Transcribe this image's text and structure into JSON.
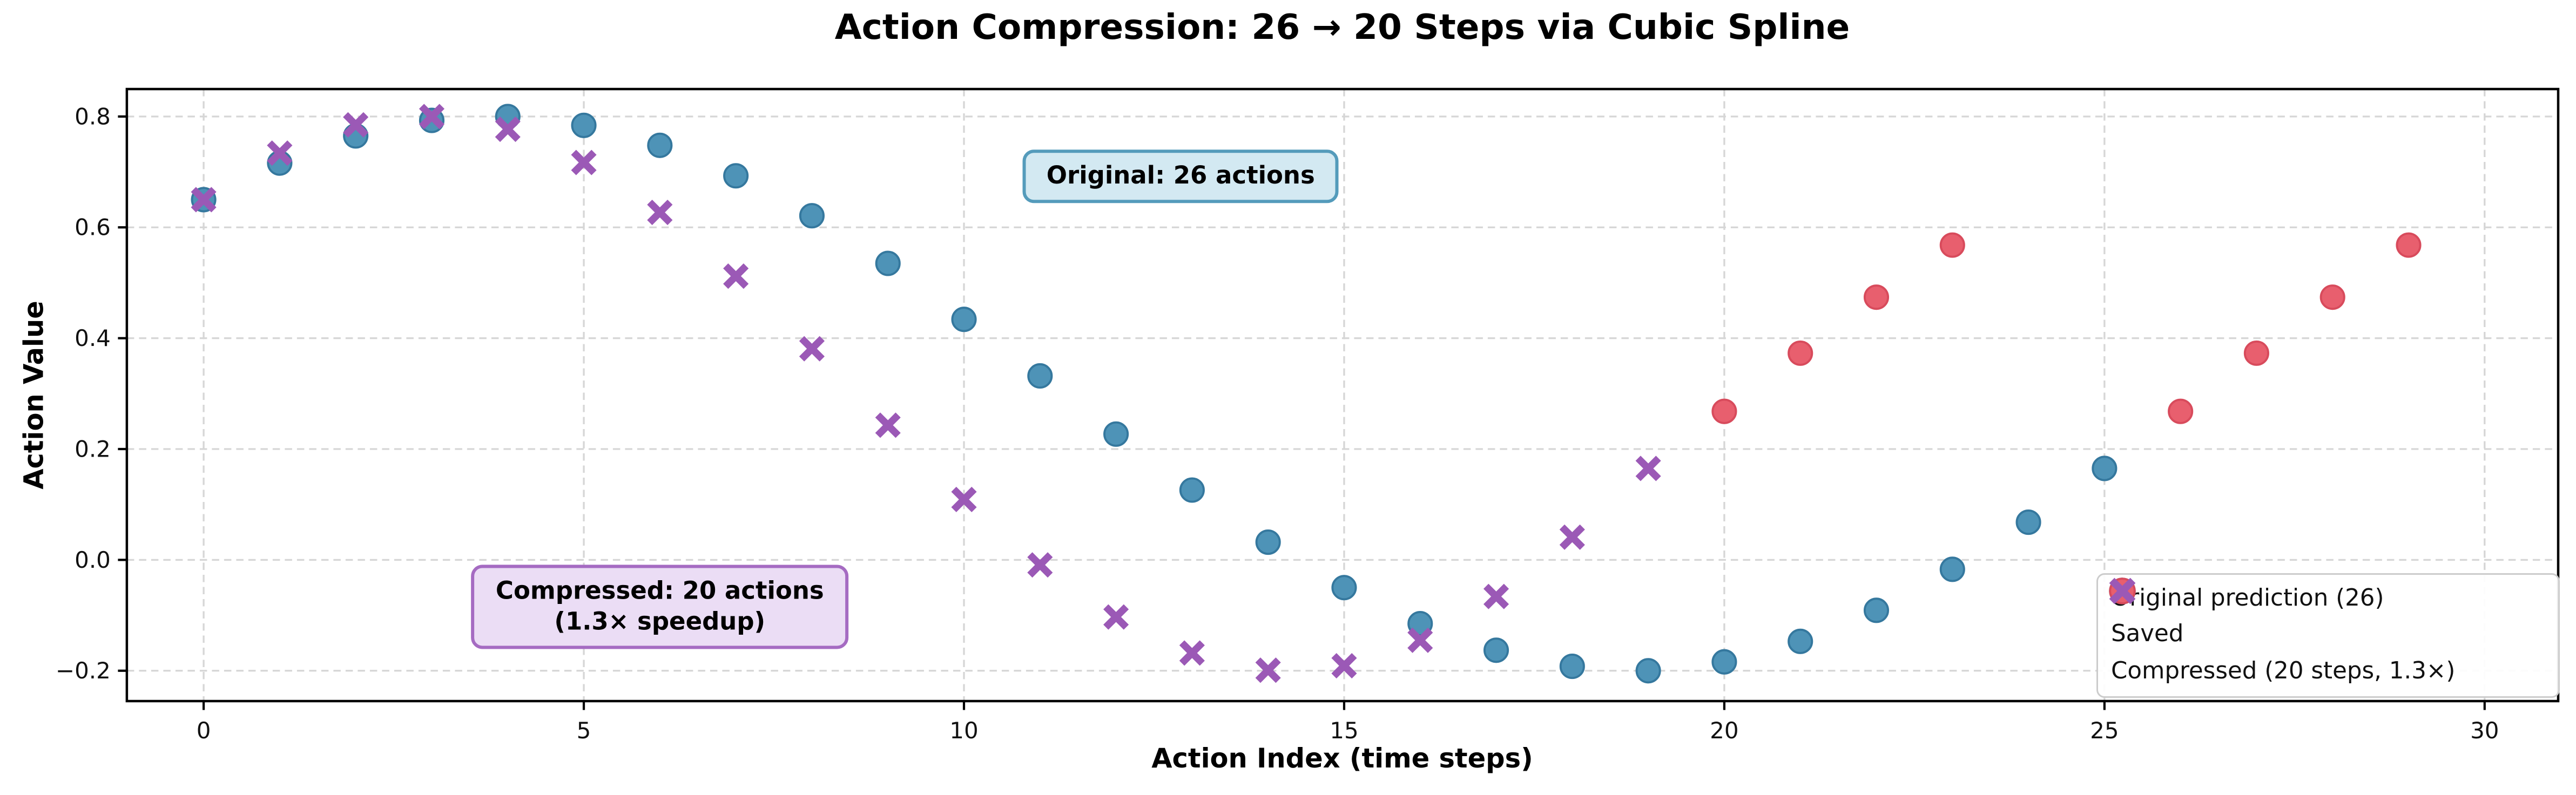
{
  "chart_data": {
    "type": "scatter",
    "title": "Action Compression: 26 → 20 Steps via Cubic Spline",
    "xlabel": "Action Index (time steps)",
    "ylabel": "Action Value",
    "xlim": [
      -1.0,
      31.0
    ],
    "ylim": [
      -0.255,
      0.85
    ],
    "grid": true,
    "grid_style": "dashed",
    "x_ticks": [
      0,
      5,
      10,
      15,
      20,
      25,
      30
    ],
    "x_tick_labels": [
      "0",
      "5",
      "10",
      "15",
      "20",
      "25",
      "30"
    ],
    "y_ticks": [
      -0.2,
      0.0,
      0.2,
      0.4,
      0.6,
      0.8
    ],
    "y_tick_labels": [
      "−0.2",
      "0.0",
      "0.2",
      "0.4",
      "0.6",
      "0.8"
    ],
    "legend_position": "lower right",
    "series": [
      {
        "name": "Original prediction (26)",
        "marker": "circle",
        "fill": "#4E93B7",
        "edge": "#35789E",
        "x": [
          0,
          1,
          2,
          3,
          4,
          5,
          6,
          7,
          8,
          9,
          10,
          11,
          12,
          13,
          14,
          15,
          16,
          17,
          18,
          19,
          20,
          21,
          22,
          23,
          24,
          25
        ],
        "y": [
          0.65,
          0.716,
          0.765,
          0.793,
          0.8,
          0.784,
          0.748,
          0.693,
          0.621,
          0.535,
          0.434,
          0.332,
          0.227,
          0.126,
          0.032,
          -0.05,
          -0.115,
          -0.163,
          -0.192,
          -0.2,
          -0.184,
          -0.147,
          -0.091,
          -0.017,
          0.068,
          0.165
        ]
      },
      {
        "name": "Saved",
        "marker": "circle",
        "fill": "#E85F6E",
        "edge": "#D84B5C",
        "x": [
          20,
          21,
          22,
          23,
          26,
          27,
          28,
          29
        ],
        "y": [
          0.268,
          0.373,
          0.474,
          0.568,
          0.268,
          0.373,
          0.474,
          0.568
        ]
      },
      {
        "name": "Compressed (20 steps, 1.3×)",
        "marker": "x",
        "fill": "#9B59B6",
        "edge": "#9B59B6",
        "x": [
          0,
          1,
          2,
          3,
          4,
          5,
          6,
          7,
          8,
          9,
          10,
          11,
          12,
          13,
          14,
          15,
          16,
          17,
          18,
          19
        ],
        "y": [
          0.65,
          0.734,
          0.785,
          0.8,
          0.777,
          0.717,
          0.627,
          0.512,
          0.381,
          0.243,
          0.109,
          -0.009,
          -0.103,
          -0.168,
          -0.199,
          -0.191,
          -0.145,
          -0.066,
          0.041,
          0.165
        ]
      }
    ],
    "legend": [
      {
        "label": "Original prediction (26)",
        "marker": "circle",
        "fill": "#4E93B7",
        "edge": "#35789E"
      },
      {
        "label": "Saved",
        "marker": "circle",
        "fill": "#E85F6E",
        "edge": "#D84B5C"
      },
      {
        "label": "Compressed (20 steps, 1.3×)",
        "marker": "x",
        "fill": "#9B59B6",
        "edge": "#9B59B6"
      }
    ],
    "annotations": {
      "original": {
        "text": "Original: 26 actions",
        "x": 12.85,
        "y": 0.693,
        "fill": "#D3E9F2",
        "edge": "#549BBB"
      },
      "compressed": {
        "line1": "Compressed: 20 actions",
        "line2": "(1.3× speedup)",
        "x": 6.0,
        "y": -0.084,
        "fill": "#EBDDF5",
        "edge": "#A56BC2"
      }
    }
  },
  "colors": {
    "grid": "#D6D6D6",
    "spine": "#000000",
    "tick_label": "#111111",
    "legend_edge": "#CCCCCC",
    "background": "#FFFFFF"
  }
}
